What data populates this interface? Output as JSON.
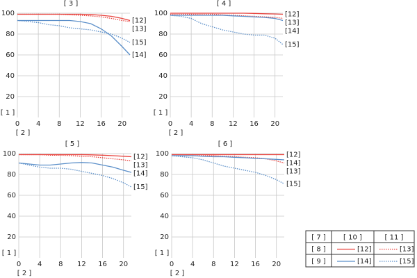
{
  "chart_data": [
    {
      "type": "line",
      "title": "[ 3 ]",
      "ylabel": "[ 1 ]",
      "xlabel": "[ 2 ]",
      "x": [
        0,
        2,
        4,
        6,
        8,
        10,
        12,
        14,
        16,
        18,
        20,
        21.5
      ],
      "xlim": [
        0,
        21.5
      ],
      "ylim": [
        0,
        100
      ],
      "xticks": [
        0,
        4,
        8,
        12,
        16,
        20
      ],
      "yticks": [
        20,
        40,
        60,
        80,
        100
      ],
      "grid": true,
      "series": [
        {
          "name": "[12]",
          "color": "#e8413c",
          "style": "solid",
          "values": [
            99,
            99,
            99,
            99,
            99,
            99,
            99,
            98.8,
            98,
            97,
            95,
            93
          ]
        },
        {
          "name": "[13]",
          "color": "#e8413c",
          "style": "dotted",
          "values": [
            99,
            99,
            99,
            99,
            99,
            98.5,
            98,
            97.5,
            96.5,
            95,
            93,
            92
          ]
        },
        {
          "name": "[14]",
          "color": "#5b8fc9",
          "style": "solid",
          "values": [
            93,
            93,
            93,
            93,
            93,
            93,
            92,
            90,
            85,
            78,
            68,
            60
          ]
        },
        {
          "name": "[15]",
          "color": "#5b8fc9",
          "style": "dotted",
          "values": [
            93,
            92,
            91,
            89,
            88,
            86,
            85,
            84,
            82,
            80,
            76,
            72
          ]
        }
      ]
    },
    {
      "type": "line",
      "title": "[ 4 ]",
      "ylabel": "[ 1 ]",
      "xlabel": "[ 2 ]",
      "x": [
        0,
        2,
        4,
        6,
        8,
        10,
        12,
        14,
        16,
        18,
        20,
        21.5
      ],
      "xlim": [
        0,
        21.5
      ],
      "ylim": [
        0,
        100
      ],
      "xticks": [
        0,
        4,
        8,
        12,
        16,
        20
      ],
      "yticks": [
        20,
        40,
        60,
        80,
        100
      ],
      "grid": true,
      "series": [
        {
          "name": "[12]",
          "color": "#e8413c",
          "style": "solid",
          "values": [
            100,
            100,
            100,
            100,
            100,
            100,
            100,
            100,
            99.8,
            99.5,
            99.3,
            99
          ]
        },
        {
          "name": "[13]",
          "color": "#e8413c",
          "style": "dotted",
          "values": [
            99,
            99,
            99,
            99,
            99,
            98.5,
            98,
            97.5,
            97,
            96.5,
            96,
            95
          ]
        },
        {
          "name": "[14]",
          "color": "#5b8fc9",
          "style": "solid",
          "values": [
            98,
            98,
            98,
            98,
            98,
            98,
            97.5,
            97,
            96.5,
            96,
            95,
            93
          ]
        },
        {
          "name": "[15]",
          "color": "#5b8fc9",
          "style": "dotted",
          "values": [
            98,
            97,
            95,
            90,
            87,
            84,
            82,
            80,
            79,
            79,
            76,
            70
          ]
        }
      ]
    },
    {
      "type": "line",
      "title": "[ 5 ]",
      "ylabel": "[ 1 ]",
      "xlabel": "[ 2 ]",
      "x": [
        0,
        2,
        4,
        6,
        8,
        10,
        12,
        14,
        16,
        18,
        20,
        21.5
      ],
      "xlim": [
        0,
        21.5
      ],
      "ylim": [
        0,
        100
      ],
      "xticks": [
        0,
        4,
        8,
        12,
        16,
        20
      ],
      "yticks": [
        20,
        40,
        60,
        80,
        100
      ],
      "grid": true,
      "series": [
        {
          "name": "[12]",
          "color": "#e8413c",
          "style": "solid",
          "values": [
            99,
            99,
            99,
            99,
            99,
            99,
            99,
            98.8,
            98.5,
            98,
            97.5,
            97
          ]
        },
        {
          "name": "[13]",
          "color": "#e8413c",
          "style": "dotted",
          "values": [
            99,
            99,
            99,
            98.5,
            98.5,
            98,
            97.5,
            97,
            96,
            95,
            94,
            93
          ]
        },
        {
          "name": "[14]",
          "color": "#5b8fc9",
          "style": "solid",
          "values": [
            91,
            90,
            89,
            89,
            90,
            91,
            91.5,
            91,
            89,
            87,
            84,
            82
          ]
        },
        {
          "name": "[15]",
          "color": "#5b8fc9",
          "style": "dotted",
          "values": [
            91,
            89,
            87,
            86,
            86,
            85,
            83,
            81,
            79,
            76,
            72,
            68
          ]
        }
      ]
    },
    {
      "type": "line",
      "title": "[ 6 ]",
      "ylabel": "[ 1 ]",
      "xlabel": "[ 2 ]",
      "x": [
        0,
        2,
        4,
        6,
        8,
        10,
        12,
        14,
        16,
        18,
        20,
        21.5
      ],
      "xlim": [
        0,
        21.5
      ],
      "ylim": [
        0,
        100
      ],
      "xticks": [
        0,
        4,
        8,
        12,
        16,
        20
      ],
      "yticks": [
        20,
        40,
        60,
        80,
        100
      ],
      "grid": true,
      "series": [
        {
          "name": "[12]",
          "color": "#e8413c",
          "style": "solid",
          "values": [
            99,
            99,
            99,
            99,
            99,
            99,
            99,
            99,
            99,
            99,
            99,
            99
          ]
        },
        {
          "name": "[13]",
          "color": "#e8413c",
          "style": "dotted",
          "values": [
            98,
            98,
            98,
            98,
            98,
            97.5,
            97,
            96.5,
            96,
            95,
            93,
            91
          ]
        },
        {
          "name": "[14]",
          "color": "#5b8fc9",
          "style": "solid",
          "values": [
            98,
            98,
            98,
            97.5,
            97,
            97,
            96.5,
            96,
            95.5,
            95,
            94.5,
            94
          ]
        },
        {
          "name": "[15]",
          "color": "#5b8fc9",
          "style": "dotted",
          "values": [
            98,
            97,
            96,
            94,
            91,
            88,
            86,
            84,
            82,
            79,
            75,
            71
          ]
        }
      ]
    }
  ],
  "legend_table": {
    "header": [
      "[ 7 ]",
      "[ 10 ]",
      "[ 11 ]"
    ],
    "rows": [
      [
        "[ 8 ]",
        "[12]",
        "[13]"
      ],
      [
        "[ 9 ]",
        "[14]",
        "[15]"
      ]
    ]
  }
}
